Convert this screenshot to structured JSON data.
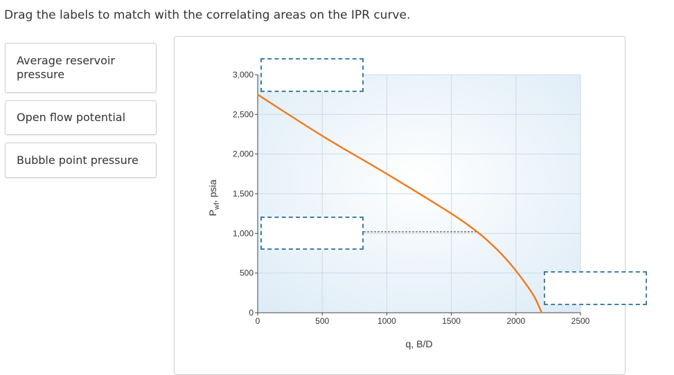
{
  "instruction": "Drag the labels to match with the correlating areas on the IPR curve.",
  "labels": [
    {
      "text": "Average reservoir pressure"
    },
    {
      "text": "Open flow potential"
    },
    {
      "text": "Bubble point pressure"
    }
  ],
  "colors": {
    "curve": "#f07c1f",
    "drop_border": "#3a7fae",
    "grid": "#c9dbe7",
    "plot_bg_center": "#ffffff",
    "plot_bg_edge": "#dcebf6"
  },
  "chart_data": {
    "type": "line",
    "xlabel": "q, B/D",
    "ylabel_main": "P",
    "ylabel_sub": "wf",
    "ylabel_rest": ", psia",
    "xlim": [
      0,
      2500
    ],
    "ylim": [
      0,
      3000
    ],
    "x_ticks": [
      "0",
      "500",
      "1000",
      "1500",
      "2000",
      "2500"
    ],
    "y_ticks": [
      "0",
      "500",
      "1,000",
      "1,500",
      "2,000",
      "2,500",
      "3,000"
    ],
    "grid": true,
    "series": [
      {
        "x": [
          0,
          500,
          1000,
          1500,
          1700,
          1800,
          1900,
          2000,
          2100,
          2150,
          2200
        ],
        "y": [
          2750,
          2230,
          1750,
          1250,
          1020,
          880,
          720,
          530,
          310,
          180,
          0
        ]
      }
    ],
    "bubble_point": {
      "x": 1700,
      "y": 1020
    }
  }
}
